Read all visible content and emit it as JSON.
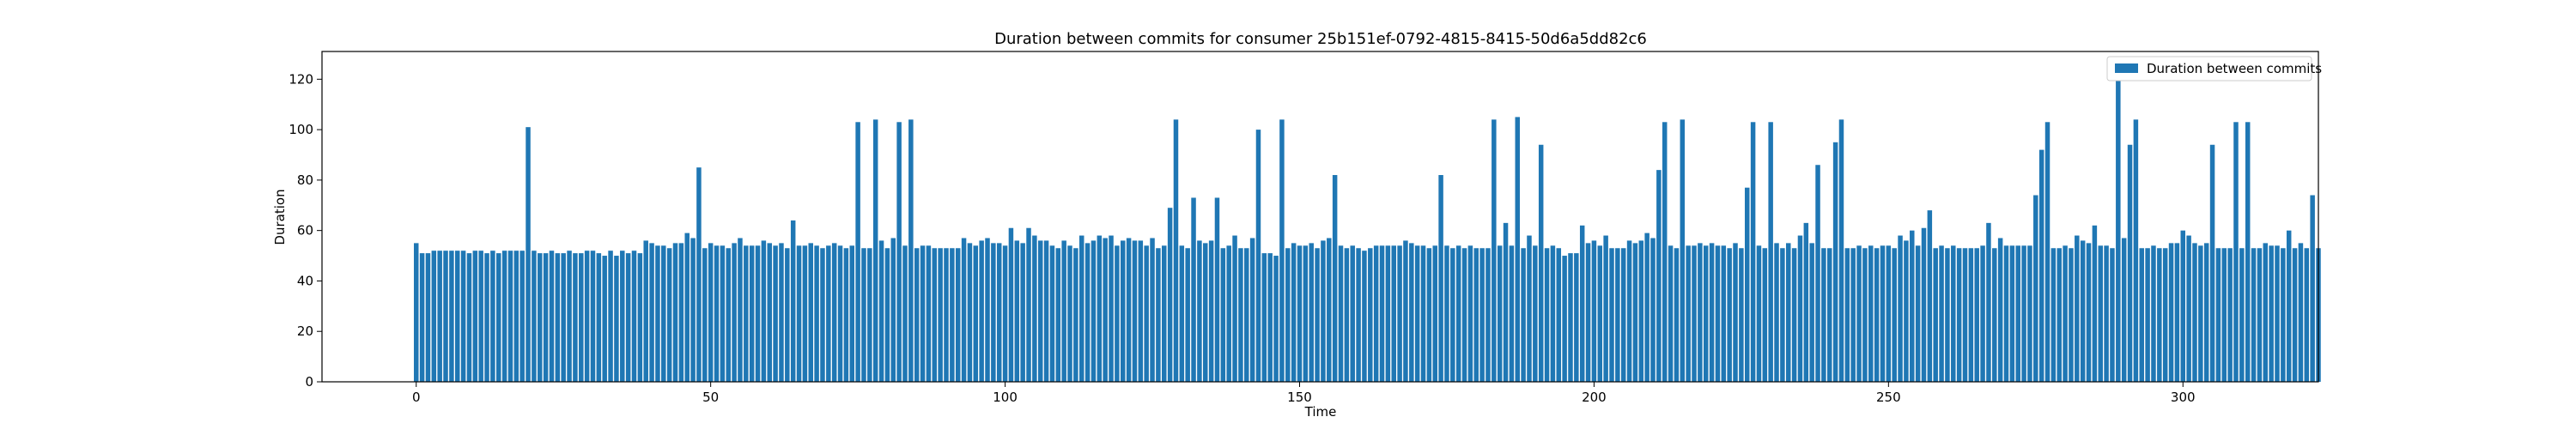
{
  "chart_data": {
    "type": "bar",
    "title": "Duration between commits for consumer 25b151ef-0792-4815-8415-50d6a5dd82c6",
    "xlabel": "Time",
    "ylabel": "Duration",
    "xlim": [
      -16,
      323
    ],
    "ylim": [
      0,
      131
    ],
    "xticks": [
      0,
      50,
      100,
      150,
      200,
      250,
      300
    ],
    "yticks": [
      0,
      20,
      40,
      60,
      80,
      100,
      120
    ],
    "grid": false,
    "legend_position": "top-right",
    "bar_color": "#1f77b4",
    "series": [
      {
        "name": "Duration between commits",
        "values": [
          55,
          51,
          51,
          52,
          52,
          52,
          52,
          52,
          52,
          51,
          52,
          52,
          51,
          52,
          51,
          52,
          52,
          52,
          52,
          101,
          52,
          51,
          51,
          52,
          51,
          51,
          52,
          51,
          51,
          52,
          52,
          51,
          50,
          52,
          50,
          52,
          51,
          52,
          51,
          56,
          55,
          54,
          54,
          53,
          55,
          55,
          59,
          57,
          85,
          53,
          55,
          54,
          54,
          53,
          55,
          57,
          54,
          54,
          54,
          56,
          55,
          54,
          55,
          53,
          64,
          54,
          54,
          55,
          54,
          53,
          54,
          55,
          54,
          53,
          54,
          103,
          53,
          53,
          104,
          56,
          53,
          57,
          103,
          54,
          104,
          53,
          54,
          54,
          53,
          53,
          53,
          53,
          53,
          57,
          55,
          54,
          56,
          57,
          55,
          55,
          54,
          61,
          56,
          55,
          61,
          58,
          56,
          56,
          54,
          53,
          56,
          54,
          53,
          58,
          55,
          56,
          58,
          57,
          58,
          54,
          56,
          57,
          56,
          56,
          54,
          57,
          53,
          54,
          69,
          104,
          54,
          53,
          73,
          56,
          55,
          56,
          73,
          53,
          54,
          58,
          53,
          53,
          57,
          100,
          51,
          51,
          50,
          104,
          53,
          55,
          54,
          54,
          55,
          53,
          56,
          57,
          82,
          54,
          53,
          54,
          53,
          52,
          53,
          54,
          54,
          54,
          54,
          54,
          56,
          55,
          54,
          54,
          53,
          54,
          82,
          54,
          53,
          54,
          53,
          54,
          53,
          53,
          53,
          104,
          54,
          63,
          54,
          105,
          53,
          58,
          54,
          94,
          53,
          54,
          53,
          50,
          51,
          51,
          62,
          55,
          56,
          54,
          58,
          53,
          53,
          53,
          56,
          55,
          56,
          59,
          57,
          84,
          103,
          54,
          53,
          104,
          54,
          54,
          55,
          54,
          55,
          54,
          54,
          53,
          55,
          53,
          77,
          103,
          54,
          53,
          103,
          55,
          53,
          55,
          53,
          58,
          63,
          55,
          86,
          53,
          53,
          95,
          104,
          53,
          53,
          54,
          53,
          54,
          53,
          54,
          54,
          53,
          58,
          56,
          60,
          54,
          61,
          68,
          53,
          54,
          53,
          54,
          53,
          53,
          53,
          53,
          54,
          63,
          53,
          57,
          54,
          54,
          54,
          54,
          54,
          74,
          92,
          103,
          53,
          53,
          54,
          53,
          58,
          56,
          55,
          62,
          54,
          54,
          53,
          125,
          57,
          94,
          104,
          53,
          53,
          54,
          53,
          53,
          55,
          55,
          60,
          58,
          55,
          54,
          55,
          94,
          53,
          53,
          53,
          103,
          53,
          103,
          53,
          53,
          55,
          54,
          54,
          53,
          60,
          53,
          55,
          53,
          74,
          53
        ]
      }
    ]
  }
}
